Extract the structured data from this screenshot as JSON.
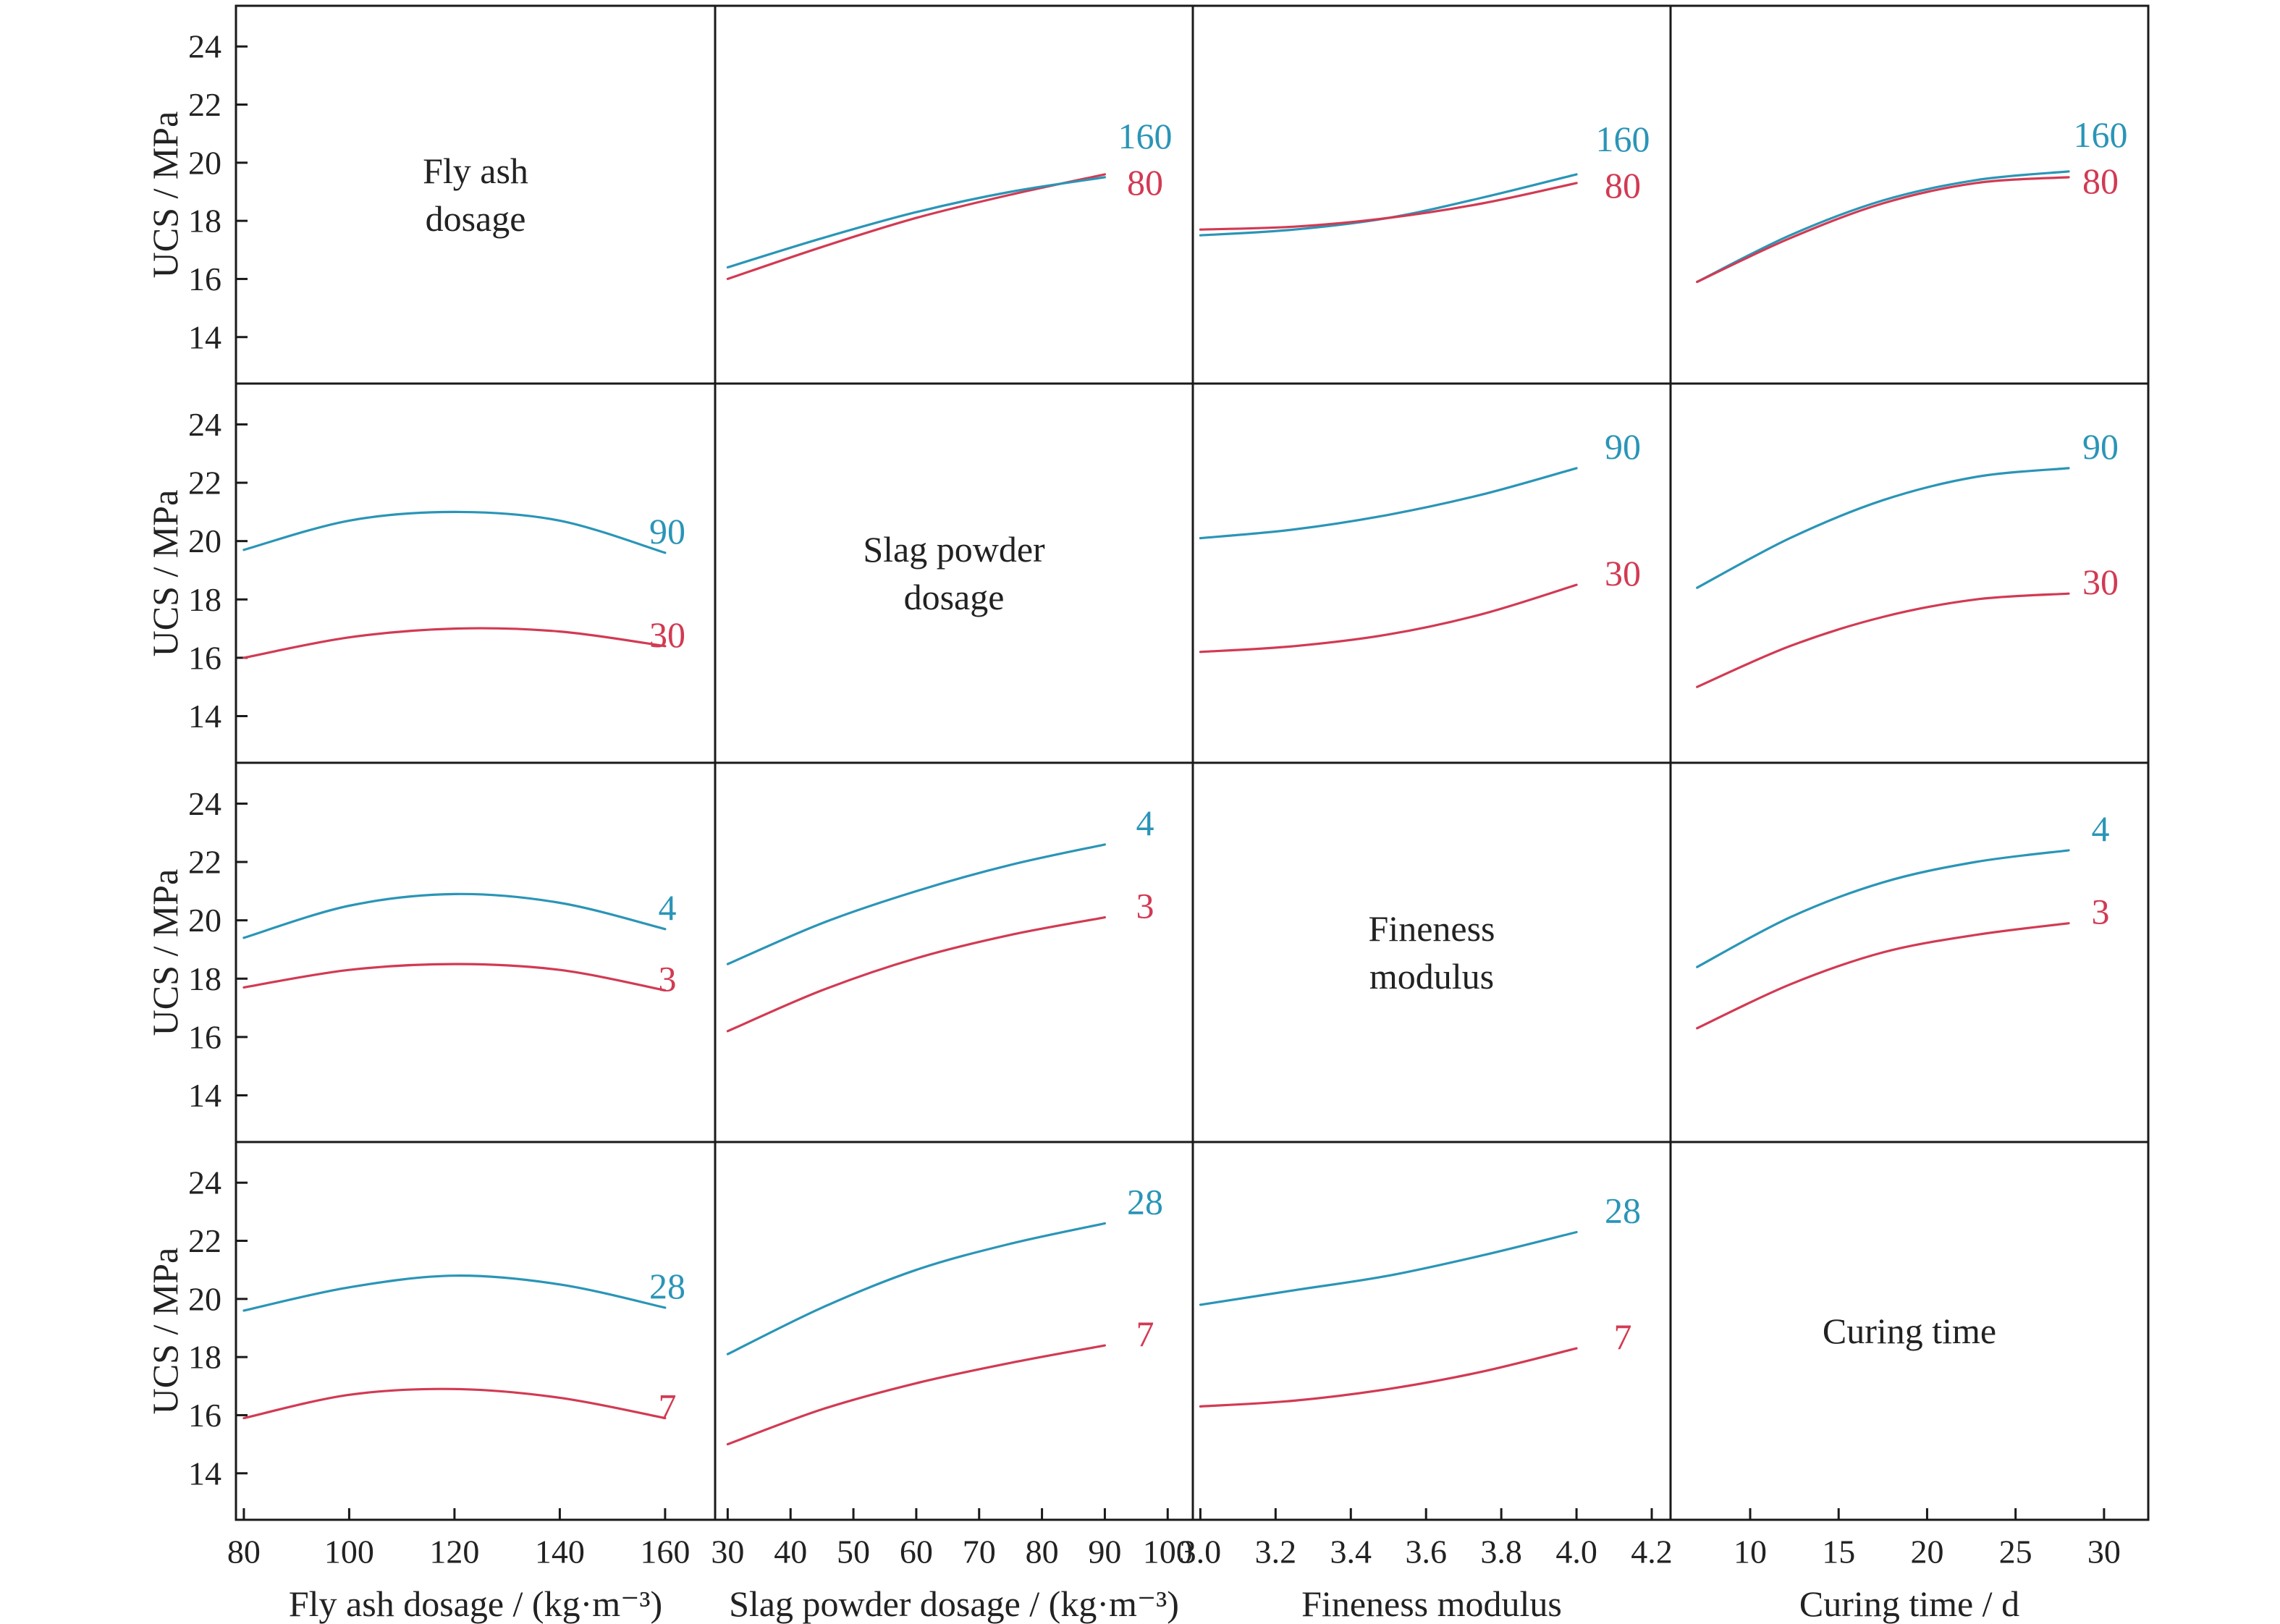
{
  "figure": {
    "ylabel": "UCS / MPa",
    "yticks": [
      14,
      16,
      18,
      20,
      22,
      24
    ],
    "ylim": [
      12.4,
      25.4
    ],
    "colors": {
      "high": "#2a95b7",
      "low": "#d23a53",
      "frame": "#1a1a1a",
      "text": "#222222"
    }
  },
  "factors": [
    {
      "name": "Fly ash dosage",
      "title_lines": [
        "Fly ash",
        "dosage"
      ],
      "xlabel": "Fly ash dosage / (kg·m⁻³)",
      "xlim": [
        78.5,
        169.5
      ],
      "xticks": [
        80,
        100,
        120,
        140,
        160
      ],
      "xrange": [
        80,
        160
      ]
    },
    {
      "name": "Slag powder dosage",
      "title_lines": [
        "Slag powder",
        "dosage"
      ],
      "xlabel": "Slag powder dosage / (kg·m⁻³)",
      "xlim": [
        28,
        104
      ],
      "xticks": [
        30,
        40,
        50,
        60,
        70,
        80,
        90,
        100
      ],
      "xrange": [
        30,
        90
      ]
    },
    {
      "name": "Fineness modulus",
      "title_lines": [
        "Fineness",
        "modulus"
      ],
      "xlabel": "Fineness modulus",
      "xlim": [
        2.98,
        4.25
      ],
      "xticks": [
        3.0,
        3.2,
        3.4,
        3.6,
        3.8,
        4.0,
        4.2
      ],
      "xrange": [
        3.0,
        4.0
      ]
    },
    {
      "name": "Curing time",
      "title_lines": [
        "Curing time"
      ],
      "xlabel": "Curing time / d",
      "xlim": [
        5.5,
        32.5
      ],
      "xticks": [
        10,
        15,
        20,
        25,
        30
      ],
      "xrange": [
        7,
        28
      ]
    }
  ],
  "chart_data": {
    "type": "line",
    "title": "",
    "panels": [
      {
        "row": 0,
        "col": 1,
        "x": [
          30,
          45,
          60,
          75,
          90
        ],
        "series": [
          {
            "name": "80",
            "color": "low",
            "values": [
              16.0,
              17.1,
              18.1,
              18.9,
              19.6
            ]
          },
          {
            "name": "160",
            "color": "high",
            "values": [
              16.4,
              17.4,
              18.3,
              19.0,
              19.5
            ]
          }
        ]
      },
      {
        "row": 0,
        "col": 2,
        "x": [
          3.0,
          3.25,
          3.5,
          3.75,
          4.0
        ],
        "series": [
          {
            "name": "160",
            "color": "high",
            "values": [
              17.5,
              17.7,
              18.1,
              18.8,
              19.6
            ]
          },
          {
            "name": "80",
            "color": "low",
            "values": [
              17.7,
              17.8,
              18.1,
              18.6,
              19.3
            ]
          }
        ]
      },
      {
        "row": 0,
        "col": 3,
        "x": [
          7,
          12.25,
          17.5,
          22.75,
          28
        ],
        "series": [
          {
            "name": "160",
            "color": "high",
            "values": [
              15.9,
              17.5,
              18.7,
              19.4,
              19.7
            ]
          },
          {
            "name": "80",
            "color": "low",
            "values": [
              15.9,
              17.4,
              18.6,
              19.3,
              19.5
            ]
          }
        ]
      },
      {
        "row": 1,
        "col": 0,
        "x": [
          80,
          100,
          120,
          140,
          160
        ],
        "series": [
          {
            "name": "90",
            "color": "high",
            "values": [
              19.7,
              20.7,
              21.0,
              20.7,
              19.6
            ]
          },
          {
            "name": "30",
            "color": "low",
            "values": [
              16.0,
              16.7,
              17.0,
              16.9,
              16.4
            ]
          }
        ]
      },
      {
        "row": 1,
        "col": 2,
        "x": [
          3.0,
          3.25,
          3.5,
          3.75,
          4.0
        ],
        "series": [
          {
            "name": "90",
            "color": "high",
            "values": [
              20.1,
              20.4,
              20.9,
              21.6,
              22.5
            ]
          },
          {
            "name": "30",
            "color": "low",
            "values": [
              16.2,
              16.4,
              16.8,
              17.5,
              18.5
            ]
          }
        ]
      },
      {
        "row": 1,
        "col": 3,
        "x": [
          7,
          12.25,
          17.5,
          22.75,
          28
        ],
        "series": [
          {
            "name": "90",
            "color": "high",
            "values": [
              18.4,
              20.1,
              21.4,
              22.2,
              22.5
            ]
          },
          {
            "name": "30",
            "color": "low",
            "values": [
              15.0,
              16.4,
              17.4,
              18.0,
              18.2
            ]
          }
        ]
      },
      {
        "row": 2,
        "col": 0,
        "x": [
          80,
          100,
          120,
          140,
          160
        ],
        "series": [
          {
            "name": "4",
            "color": "high",
            "values": [
              19.4,
              20.5,
              20.9,
              20.6,
              19.7
            ]
          },
          {
            "name": "3",
            "color": "low",
            "values": [
              17.7,
              18.3,
              18.5,
              18.3,
              17.6
            ]
          }
        ]
      },
      {
        "row": 2,
        "col": 1,
        "x": [
          30,
          45,
          60,
          75,
          90
        ],
        "series": [
          {
            "name": "4",
            "color": "high",
            "values": [
              18.5,
              19.9,
              21.0,
              21.9,
              22.6
            ]
          },
          {
            "name": "3",
            "color": "low",
            "values": [
              16.2,
              17.6,
              18.7,
              19.5,
              20.1
            ]
          }
        ]
      },
      {
        "row": 2,
        "col": 3,
        "x": [
          7,
          12.25,
          17.5,
          22.75,
          28
        ],
        "series": [
          {
            "name": "4",
            "color": "high",
            "values": [
              18.4,
              20.1,
              21.3,
              22.0,
              22.4
            ]
          },
          {
            "name": "3",
            "color": "low",
            "values": [
              16.3,
              17.8,
              18.9,
              19.5,
              19.9
            ]
          }
        ]
      },
      {
        "row": 3,
        "col": 0,
        "x": [
          80,
          100,
          120,
          140,
          160
        ],
        "series": [
          {
            "name": "28",
            "color": "high",
            "values": [
              19.6,
              20.4,
              20.8,
              20.5,
              19.7
            ]
          },
          {
            "name": "7",
            "color": "low",
            "values": [
              15.9,
              16.7,
              16.9,
              16.6,
              15.9
            ]
          }
        ]
      },
      {
        "row": 3,
        "col": 1,
        "x": [
          30,
          45,
          60,
          75,
          90
        ],
        "series": [
          {
            "name": "28",
            "color": "high",
            "values": [
              18.1,
              19.7,
              21.0,
              21.9,
              22.6
            ]
          },
          {
            "name": "7",
            "color": "low",
            "values": [
              15.0,
              16.2,
              17.1,
              17.8,
              18.4
            ]
          }
        ]
      },
      {
        "row": 3,
        "col": 2,
        "x": [
          3.0,
          3.25,
          3.5,
          3.75,
          4.0
        ],
        "series": [
          {
            "name": "28",
            "color": "high",
            "values": [
              19.8,
              20.3,
              20.8,
              21.5,
              22.3
            ]
          },
          {
            "name": "7",
            "color": "low",
            "values": [
              16.3,
              16.5,
              16.9,
              17.5,
              18.3
            ]
          }
        ]
      }
    ]
  }
}
